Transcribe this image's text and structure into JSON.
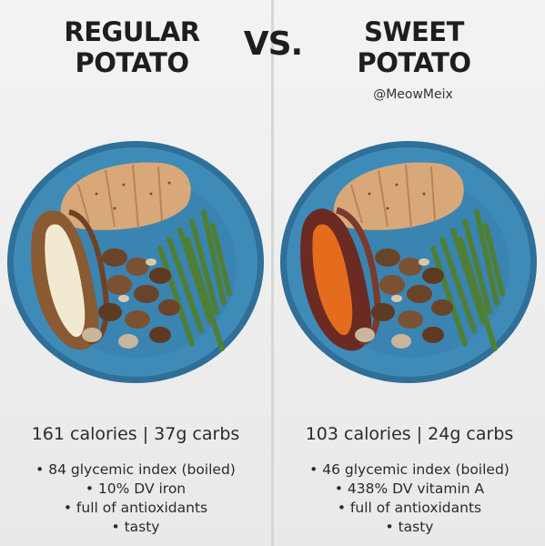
{
  "header": {
    "left_title_line1": "REGULAR",
    "left_title_line2": "POTATO",
    "vs": "VS.",
    "right_title_line1": "SWEET",
    "right_title_line2": "POTATO",
    "credit": "@MeowMeix"
  },
  "left": {
    "stats": "161 calories | 37g carbs",
    "bullets": [
      "• 84 glycemic index (boiled)",
      "• 10% DV iron",
      "• full of antioxidants",
      "• tasty"
    ]
  },
  "right": {
    "stats": "103 calories | 24g carbs",
    "bullets": [
      "• 46 glycemic index (boiled)",
      "• 438% DV vitamin A",
      "• full of antioxidants",
      "• tasty"
    ]
  },
  "colors": {
    "plate": "#3f8bb8",
    "plate_rim": "#2f6f98",
    "chicken": "#d9a878",
    "green_beans": "#4f7f37",
    "mushroom": "#6a4429",
    "potato_skin": "#8a5a32",
    "potato_flesh": "#f1ead0",
    "sweet_potato_flesh": "#e46c1c",
    "sweet_potato_skin": "#6b2a22"
  }
}
